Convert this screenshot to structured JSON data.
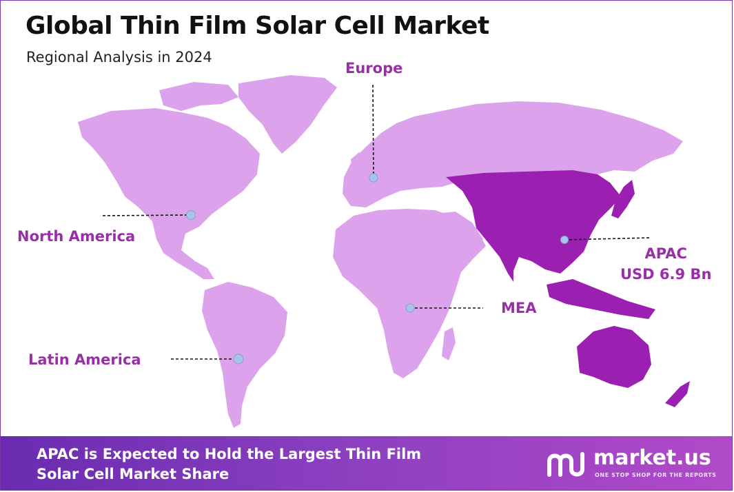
{
  "header": {
    "title": "Global Thin Film Solar Cell Market",
    "subtitle": "Regional Analysis in 2024"
  },
  "regions": {
    "europe": {
      "label": "Europe"
    },
    "north_america": {
      "label": "North America"
    },
    "latin_america": {
      "label": "Latin America"
    },
    "mea": {
      "label": "MEA"
    },
    "apac": {
      "label": "APAC",
      "value": "USD 6.9 Bn",
      "highlighted": true
    }
  },
  "colors": {
    "land": "#dca3ec",
    "highlight": "#9b1fb0",
    "label": "#9a2ea8",
    "marker": "#a9c4ea",
    "footer_start": "#6a2bb0",
    "footer_end": "#b14ac9"
  },
  "footer": {
    "line1": "APAC is Expected to Hold the Largest Thin Film",
    "line2": "Solar Cell Market Share"
  },
  "brand": {
    "name": "market.us",
    "tagline": "ONE STOP SHOP FOR THE REPORTS",
    "logo_icon": "market-us-logo-icon"
  }
}
